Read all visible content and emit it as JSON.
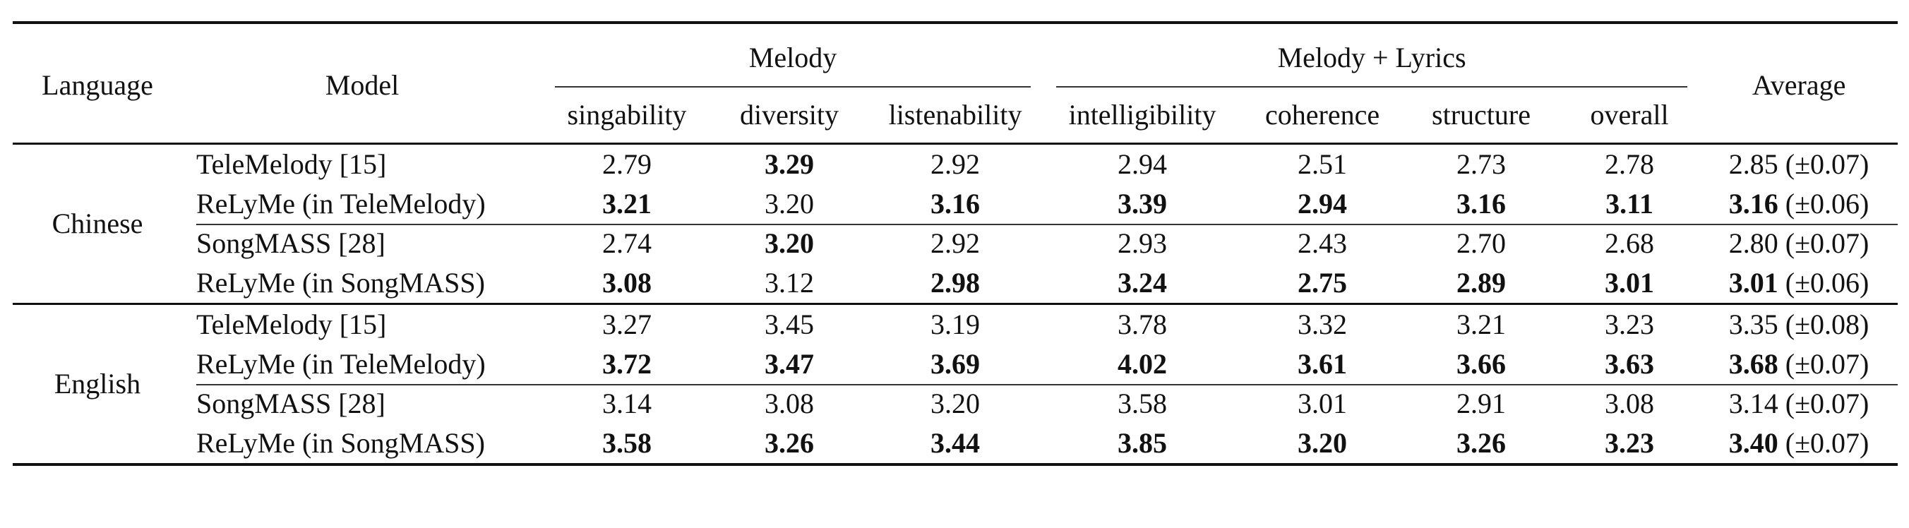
{
  "header": {
    "language": "Language",
    "model": "Model",
    "melody_group": "Melody",
    "lyrics_group": "Melody + Lyrics",
    "average": "Average",
    "metrics": [
      "singability",
      "diversity",
      "listenability",
      "intelligibility",
      "coherence",
      "structure",
      "overall"
    ]
  },
  "groups": [
    {
      "language": "Chinese",
      "rows": [
        {
          "model": "TeleMelody [15]",
          "values": [
            "2.79",
            "3.29",
            "2.92",
            "2.94",
            "2.51",
            "2.73",
            "2.78"
          ],
          "bold": [
            false,
            true,
            false,
            false,
            false,
            false,
            false
          ],
          "avg_mean": "2.85",
          "avg_sd": "(±0.07)",
          "avg_bold": false
        },
        {
          "model": "ReLyMe (in TeleMelody)",
          "values": [
            "3.21",
            "3.20",
            "3.16",
            "3.39",
            "2.94",
            "3.16",
            "3.11"
          ],
          "bold": [
            true,
            false,
            true,
            true,
            true,
            true,
            true
          ],
          "avg_mean": "3.16",
          "avg_sd": "(±0.06)",
          "avg_bold": true
        },
        {
          "model": "SongMASS [28]",
          "values": [
            "2.74",
            "3.20",
            "2.92",
            "2.93",
            "2.43",
            "2.70",
            "2.68"
          ],
          "bold": [
            false,
            true,
            false,
            false,
            false,
            false,
            false
          ],
          "avg_mean": "2.80",
          "avg_sd": "(±0.07)",
          "avg_bold": false
        },
        {
          "model": "ReLyMe (in SongMASS)",
          "values": [
            "3.08",
            "3.12",
            "2.98",
            "3.24",
            "2.75",
            "2.89",
            "3.01"
          ],
          "bold": [
            true,
            false,
            true,
            true,
            true,
            true,
            true
          ],
          "avg_mean": "3.01",
          "avg_sd": "(±0.06)",
          "avg_bold": true
        }
      ]
    },
    {
      "language": "English",
      "rows": [
        {
          "model": "TeleMelody [15]",
          "values": [
            "3.27",
            "3.45",
            "3.19",
            "3.78",
            "3.32",
            "3.21",
            "3.23"
          ],
          "bold": [
            false,
            false,
            false,
            false,
            false,
            false,
            false
          ],
          "avg_mean": "3.35",
          "avg_sd": "(±0.08)",
          "avg_bold": false
        },
        {
          "model": "ReLyMe (in TeleMelody)",
          "values": [
            "3.72",
            "3.47",
            "3.69",
            "4.02",
            "3.61",
            "3.66",
            "3.63"
          ],
          "bold": [
            true,
            true,
            true,
            true,
            true,
            true,
            true
          ],
          "avg_mean": "3.68",
          "avg_sd": "(±0.07)",
          "avg_bold": true
        },
        {
          "model": "SongMASS [28]",
          "values": [
            "3.14",
            "3.08",
            "3.20",
            "3.58",
            "3.01",
            "2.91",
            "3.08"
          ],
          "bold": [
            false,
            false,
            false,
            false,
            false,
            false,
            false
          ],
          "avg_mean": "3.14",
          "avg_sd": "(±0.07)",
          "avg_bold": false
        },
        {
          "model": "ReLyMe (in SongMASS)",
          "values": [
            "3.58",
            "3.26",
            "3.44",
            "3.85",
            "3.20",
            "3.26",
            "3.23"
          ],
          "bold": [
            true,
            true,
            true,
            true,
            true,
            true,
            true
          ],
          "avg_mean": "3.40",
          "avg_sd": "(±0.07)",
          "avg_bold": true
        }
      ]
    }
  ]
}
